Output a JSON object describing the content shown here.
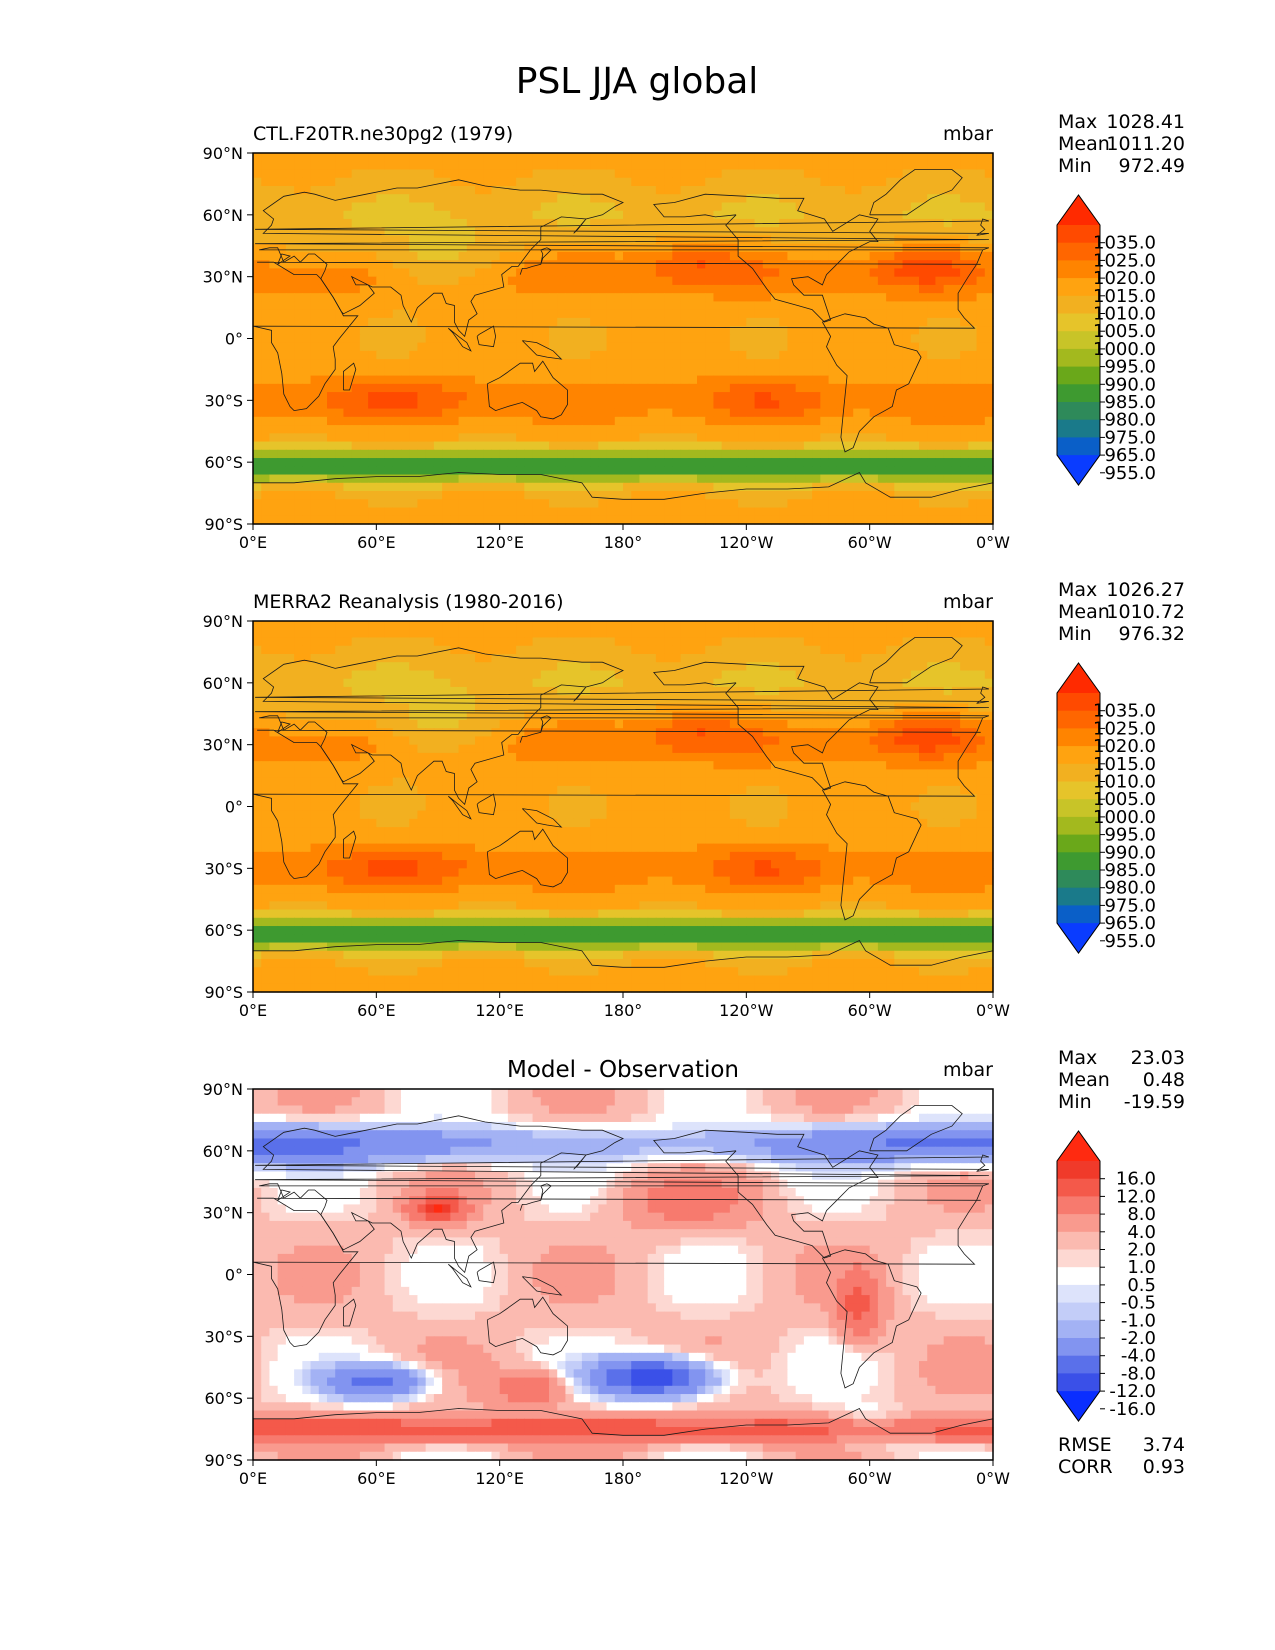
{
  "chart_data": {
    "type": "heatmap",
    "title": "PSL JJA global",
    "x_ticks": [
      "0°E",
      "60°E",
      "120°E",
      "180°",
      "120°W",
      "60°W",
      "0°W"
    ],
    "y_ticks": [
      "90°N",
      "60°N",
      "30°N",
      "0°",
      "30°S",
      "60°S",
      "90°S"
    ],
    "xlim": [
      0,
      360
    ],
    "ylim": [
      -90,
      90
    ],
    "panels": [
      {
        "title_left": "CTL.F20TR.ne30pg2 (1979)",
        "title_center": "",
        "units": "mbar",
        "stats": {
          "max_label": "Max",
          "max": "1028.41",
          "mean_label": "Mean",
          "mean": "1011.20",
          "min_label": "Min",
          "min": "972.49"
        },
        "colorbar": {
          "levels": [
            "1035.0",
            "1025.0",
            "1020.0",
            "1015.0",
            "1010.0",
            "1005.0",
            "1000.0",
            "995.0",
            "990.0",
            "985.0",
            "980.0",
            "975.0",
            "965.0",
            "955.0"
          ],
          "colors": [
            "#ff2a00",
            "#ff4a00",
            "#ff6600",
            "#ff8400",
            "#ffa310",
            "#f2b020",
            "#e6c42a",
            "#c8c428",
            "#a3b91e",
            "#6aa81a",
            "#3e9a30",
            "#2e8a5a",
            "#1a7a8a",
            "#0a5fc8",
            "#0a3cff"
          ]
        },
        "field": {
          "mode": "abs"
        }
      },
      {
        "title_left": "MERRA2 Reanalysis (1980-2016)",
        "title_center": "",
        "units": "mbar",
        "stats": {
          "max_label": "Max",
          "max": "1026.27",
          "mean_label": "Mean",
          "mean": "1010.72",
          "min_label": "Min",
          "min": "976.32"
        },
        "colorbar": {
          "levels": [
            "1035.0",
            "1025.0",
            "1020.0",
            "1015.0",
            "1010.0",
            "1005.0",
            "1000.0",
            "995.0",
            "990.0",
            "985.0",
            "980.0",
            "975.0",
            "965.0",
            "955.0"
          ],
          "colors": [
            "#ff2a00",
            "#ff4a00",
            "#ff6600",
            "#ff8400",
            "#ffa310",
            "#f2b020",
            "#e6c42a",
            "#c8c428",
            "#a3b91e",
            "#6aa81a",
            "#3e9a30",
            "#2e8a5a",
            "#1a7a8a",
            "#0a5fc8",
            "#0a3cff"
          ]
        },
        "field": {
          "mode": "abs"
        }
      },
      {
        "title_left": "",
        "title_center": "Model - Observation",
        "units": "mbar",
        "stats": {
          "max_label": "Max",
          "max": "23.03",
          "mean_label": "Mean",
          "mean": "0.48",
          "min_label": "Min",
          "min": "-19.59"
        },
        "colorbar": {
          "levels": [
            "16.0",
            "12.0",
            "8.0",
            "4.0",
            "2.0",
            "1.0",
            "0.5",
            "-0.5",
            "-1.0",
            "-2.0",
            "-4.0",
            "-8.0",
            "-12.0",
            "-16.0"
          ],
          "colors": [
            "#ff2a10",
            "#f03a2a",
            "#f4594a",
            "#f77a6e",
            "#f99a8e",
            "#fbbab0",
            "#fdd8d2",
            "#ffffff",
            "#dde3fb",
            "#c3cdf8",
            "#a3b2f4",
            "#8294f0",
            "#5a70ea",
            "#3a50e8",
            "#0a2eff"
          ]
        },
        "field": {
          "mode": "diff"
        },
        "footer": {
          "rmse_label": "RMSE",
          "rmse": "3.74",
          "corr_label": "CORR",
          "corr": "0.93"
        }
      }
    ]
  }
}
